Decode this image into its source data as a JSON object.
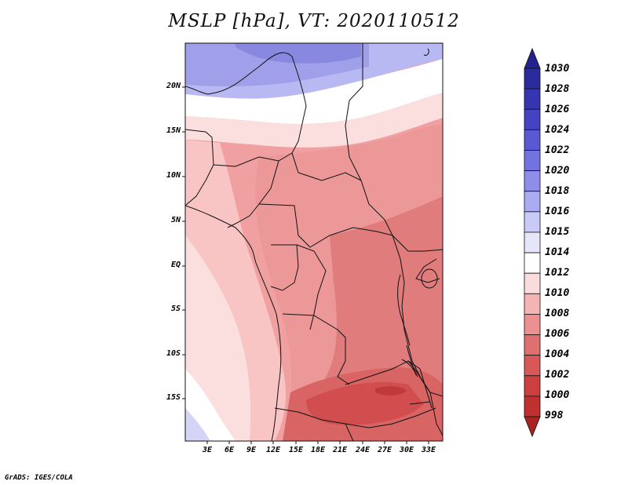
{
  "title": "MSLP [hPa], VT: 2020110512",
  "credit": "GrADS: IGES/COLA",
  "map": {
    "lat_labels": [
      "20N",
      "15N",
      "10N",
      "5N",
      "EQ",
      "5S",
      "10S",
      "15S"
    ],
    "lon_labels": [
      "3E",
      "6E",
      "9E",
      "12E",
      "15E",
      "18E",
      "21E",
      "24E",
      "27E",
      "30E",
      "33E"
    ]
  },
  "colorbar": {
    "levels": [
      "1030",
      "1028",
      "1026",
      "1024",
      "1022",
      "1020",
      "1018",
      "1016",
      "1015",
      "1014",
      "1012",
      "1010",
      "1008",
      "1006",
      "1004",
      "1002",
      "1000",
      "998"
    ],
    "colors": [
      "#23238f",
      "#2b2b9e",
      "#3535b2",
      "#4343c4",
      "#5959d4",
      "#7272e0",
      "#8e8eea",
      "#ababf2",
      "#cacaf7",
      "#e6e6fb",
      "#ffffff",
      "#fbdcdc",
      "#f5b4b4",
      "#ec9090",
      "#e07070",
      "#d85858",
      "#cd3f3f",
      "#c03030",
      "#a82424"
    ]
  }
}
